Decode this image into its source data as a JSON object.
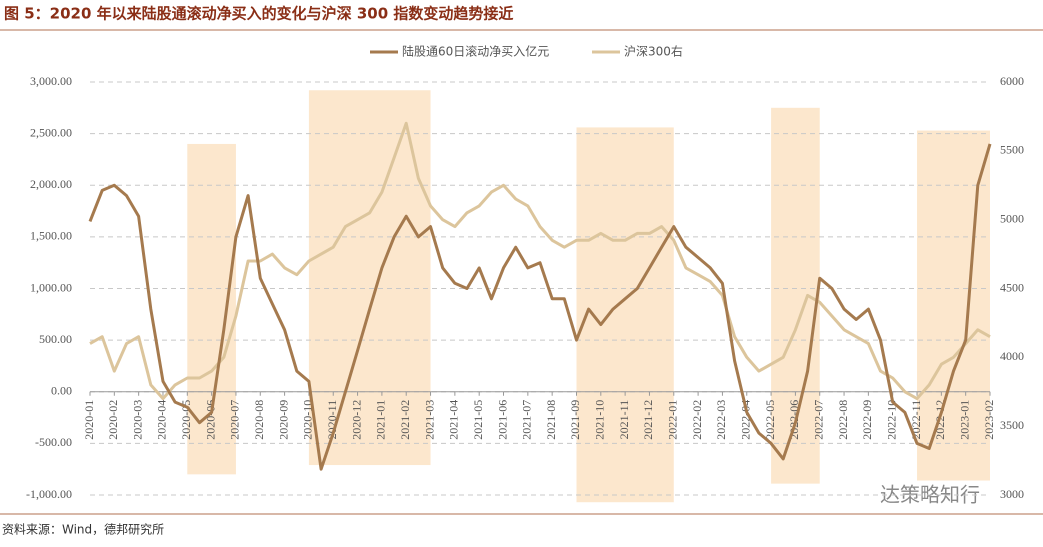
{
  "chart_data": {
    "type": "line",
    "title": "图 5：2020 年以来陆股通滚动净买入的变化与沪深 300 指数变动趋势接近",
    "source": "资料来源：Wind，德邦研究所",
    "watermark": "达策略知行",
    "categories": [
      "2020-01",
      null,
      "2020-02",
      null,
      "2020-03",
      null,
      "2020-04",
      null,
      "2020-05",
      null,
      "2020-06",
      null,
      "2020-07",
      null,
      "2020-08",
      null,
      "2020-09",
      null,
      "2020-10",
      null,
      "2020-11",
      null,
      "2020-12",
      null,
      "2021-01",
      null,
      "2021-02",
      null,
      "2021-03",
      null,
      "2021-04",
      null,
      "2021-05",
      null,
      "2021-06",
      null,
      "2021-07",
      null,
      "2021-08",
      null,
      "2021-09",
      null,
      "2021-10",
      null,
      "2021-11",
      null,
      "2021-12",
      null,
      "2022-01",
      null,
      "2022-02",
      null,
      "2022-03",
      null,
      "2022-04",
      null,
      "2022-05",
      null,
      "2022-06",
      null,
      "2022-07",
      null,
      "2022-08",
      null,
      "2022-09",
      null,
      "2022-10",
      null,
      "2022-11",
      null,
      "2022-12",
      null,
      "2023-01",
      null,
      "2023-02"
    ],
    "series": [
      {
        "name": "陆股通60日滚动净买入亿元",
        "color": "#a57a4e",
        "values": [
          1650,
          1950,
          2000,
          1900,
          1700,
          800,
          100,
          -100,
          -150,
          -300,
          -200,
          600,
          1500,
          1900,
          1100,
          850,
          600,
          200,
          100,
          -750,
          -400,
          0,
          400,
          800,
          1200,
          1500,
          1700,
          1500,
          1600,
          1200,
          1050,
          1000,
          1200,
          900,
          1200,
          1400,
          1200,
          1250,
          900,
          900,
          500,
          800,
          650,
          800,
          900,
          1000,
          1200,
          1400,
          1600,
          1400,
          1300,
          1200,
          1050,
          300,
          -200,
          -400,
          -500,
          -650,
          -300,
          200,
          1100,
          1000,
          800,
          700,
          800,
          500,
          -100,
          -200,
          -500,
          -550,
          -200,
          200,
          500,
          2000,
          2400
        ]
      },
      {
        "name": "沪深300右",
        "color": "#dcc59c",
        "axis": "y2",
        "values": [
          4100,
          4150,
          3900,
          4100,
          4150,
          3800,
          3700,
          3800,
          3850,
          3850,
          3900,
          4000,
          4300,
          4700,
          4700,
          4750,
          4650,
          4600,
          4700,
          4750,
          4800,
          4950,
          5000,
          5050,
          5200,
          5450,
          5700,
          5300,
          5100,
          5000,
          4950,
          5050,
          5100,
          5200,
          5250,
          5150,
          5100,
          4950,
          4850,
          4800,
          4850,
          4850,
          4900,
          4850,
          4850,
          4900,
          4900,
          4950,
          4850,
          4650,
          4600,
          4550,
          4450,
          4150,
          4000,
          3900,
          3950,
          4000,
          4200,
          4450,
          4400,
          4300,
          4200,
          4150,
          4100,
          3900,
          3850,
          3750,
          3700,
          3800,
          3950,
          4000,
          4100,
          4200,
          4150
        ]
      }
    ],
    "ylim": [
      -1000,
      3000
    ],
    "yticks": [
      {
        "value": -1000,
        "label": "-1,000.00"
      },
      {
        "value": -500,
        "label": "-500.00"
      },
      {
        "value": 0,
        "label": "0.00"
      },
      {
        "value": 500,
        "label": "500.00"
      },
      {
        "value": 1000,
        "label": "1,000.00"
      },
      {
        "value": 1500,
        "label": "1,500.00"
      },
      {
        "value": 2000,
        "label": "2,000.00"
      },
      {
        "value": 2500,
        "label": "2,500.00"
      },
      {
        "value": 3000,
        "label": "3,000.00"
      }
    ],
    "y2lim": [
      3000,
      6000
    ],
    "y2ticks": [
      3000,
      3500,
      4000,
      4500,
      5000,
      5500,
      6000
    ],
    "grid": true,
    "highlights": [
      {
        "from": "2020-05",
        "to": "2020-07",
        "y": [
          -800,
          2400
        ]
      },
      {
        "from": "2020-10",
        "to": "2021-03",
        "y": [
          -710,
          2920
        ]
      },
      {
        "from": "2021-09",
        "to": "2022-01",
        "y": [
          -1070,
          2560
        ]
      },
      {
        "from": "2022-05",
        "to": "2022-07",
        "y": [
          -890,
          2750
        ]
      },
      {
        "from": "2022-11",
        "to": "2023-02",
        "y": [
          -860,
          2530
        ]
      }
    ]
  }
}
